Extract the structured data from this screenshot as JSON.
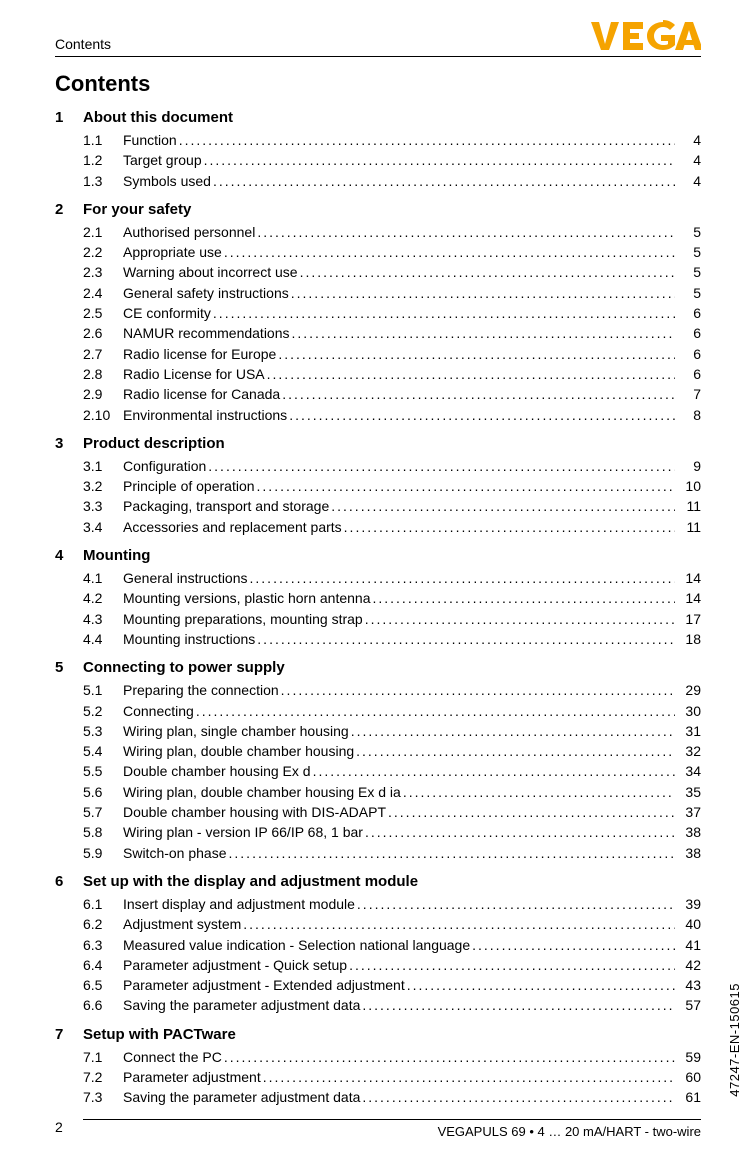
{
  "header_label": "Contents",
  "logo_text": "VEGA",
  "logo_color": "#f5a300",
  "contents_title": "Contents",
  "side_label": "47247-EN-150615",
  "footer_pagenum": "2",
  "footer_right": "VEGAPULS 69 • 4 … 20 mA/HART - two-wire",
  "sections": [
    {
      "num": "1",
      "title": "About this document",
      "entries": [
        {
          "num": "1.1",
          "label": "Function",
          "page": "4"
        },
        {
          "num": "1.2",
          "label": "Target group",
          "page": "4"
        },
        {
          "num": "1.3",
          "label": "Symbols used",
          "page": "4"
        }
      ]
    },
    {
      "num": "2",
      "title": "For your safety",
      "entries": [
        {
          "num": "2.1",
          "label": "Authorised personnel",
          "page": "5"
        },
        {
          "num": "2.2",
          "label": "Appropriate use",
          "page": "5"
        },
        {
          "num": "2.3",
          "label": "Warning about incorrect use",
          "page": "5"
        },
        {
          "num": "2.4",
          "label": "General safety instructions",
          "page": "5"
        },
        {
          "num": "2.5",
          "label": "CE conformity",
          "page": "6"
        },
        {
          "num": "2.6",
          "label": "NAMUR recommendations",
          "page": "6"
        },
        {
          "num": "2.7",
          "label": "Radio license for Europe",
          "page": "6"
        },
        {
          "num": "2.8",
          "label": "Radio License for USA",
          "page": "6"
        },
        {
          "num": "2.9",
          "label": "Radio license for Canada",
          "page": "7"
        },
        {
          "num": "2.10",
          "label": "Environmental instructions",
          "page": "8"
        }
      ]
    },
    {
      "num": "3",
      "title": "Product description",
      "entries": [
        {
          "num": "3.1",
          "label": "Configuration",
          "page": "9"
        },
        {
          "num": "3.2",
          "label": "Principle of operation",
          "page": "10"
        },
        {
          "num": "3.3",
          "label": "Packaging, transport and storage",
          "page": "11"
        },
        {
          "num": "3.4",
          "label": "Accessories and replacement parts",
          "page": "11"
        }
      ]
    },
    {
      "num": "4",
      "title": "Mounting",
      "entries": [
        {
          "num": "4.1",
          "label": "General instructions",
          "page": "14"
        },
        {
          "num": "4.2",
          "label": "Mounting versions, plastic horn antenna",
          "page": "14"
        },
        {
          "num": "4.3",
          "label": "Mounting preparations, mounting strap",
          "page": "17"
        },
        {
          "num": "4.4",
          "label": "Mounting instructions",
          "page": "18"
        }
      ]
    },
    {
      "num": "5",
      "title": "Connecting to power supply",
      "entries": [
        {
          "num": "5.1",
          "label": "Preparing the connection",
          "page": "29"
        },
        {
          "num": "5.2",
          "label": "Connecting",
          "page": "30"
        },
        {
          "num": "5.3",
          "label": "Wiring plan, single chamber housing",
          "page": "31"
        },
        {
          "num": "5.4",
          "label": "Wiring plan, double chamber housing",
          "page": "32"
        },
        {
          "num": "5.5",
          "label": "Double chamber housing Ex d",
          "page": "34"
        },
        {
          "num": "5.6",
          "label": "Wiring plan, double chamber housing Ex d ia",
          "page": "35"
        },
        {
          "num": "5.7",
          "label": "Double chamber housing with DIS-ADAPT",
          "page": "37"
        },
        {
          "num": "5.8",
          "label": "Wiring plan - version IP 66/IP 68, 1 bar",
          "page": "38"
        },
        {
          "num": "5.9",
          "label": "Switch-on phase",
          "page": "38"
        }
      ]
    },
    {
      "num": "6",
      "title": "Set up with the display and adjustment module",
      "entries": [
        {
          "num": "6.1",
          "label": "Insert display and adjustment module",
          "page": "39"
        },
        {
          "num": "6.2",
          "label": "Adjustment system",
          "page": "40"
        },
        {
          "num": "6.3",
          "label": "Measured value indication - Selection national language",
          "page": "41"
        },
        {
          "num": "6.4",
          "label": "Parameter adjustment - Quick setup",
          "page": "42"
        },
        {
          "num": "6.5",
          "label": "Parameter adjustment - Extended adjustment",
          "page": "43"
        },
        {
          "num": "6.6",
          "label": "Saving the parameter adjustment data",
          "page": "57"
        }
      ]
    },
    {
      "num": "7",
      "title": "Setup with PACTware",
      "entries": [
        {
          "num": "7.1",
          "label": "Connect the PC",
          "page": "59"
        },
        {
          "num": "7.2",
          "label": "Parameter adjustment",
          "page": "60"
        },
        {
          "num": "7.3",
          "label": "Saving the parameter adjustment data",
          "page": "61"
        }
      ]
    }
  ]
}
